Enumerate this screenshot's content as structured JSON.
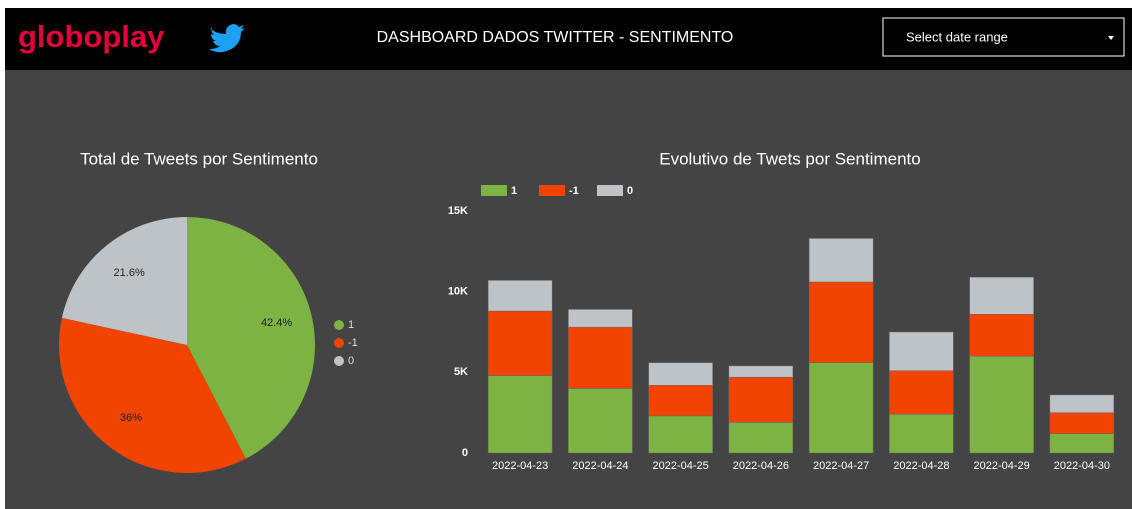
{
  "header": {
    "logo": "globoplay",
    "title": "DASHBOARD DADOS TWITTER - SENTIMENTO",
    "date_selector": "Select date range"
  },
  "chart_data": [
    {
      "type": "pie",
      "title": "Total de Tweets por Sentimento",
      "categories": [
        "1",
        "-1",
        "0"
      ],
      "values": [
        42.4,
        36,
        21.6
      ],
      "value_labels": [
        "42.4%",
        "36%",
        "21.6%"
      ],
      "colors": [
        "#7cb342",
        "#f04400",
        "#bdc3c7"
      ],
      "legend": "right"
    },
    {
      "type": "stacked_bar",
      "title": "Evolutivo de Twets por Sentimento",
      "categories": [
        "2022-04-23",
        "2022-04-24",
        "2022-04-25",
        "2022-04-26",
        "2022-04-27",
        "2022-04-28",
        "2022-04-29",
        "2022-04-30"
      ],
      "series": [
        {
          "name": "1",
          "color": "#7cb342",
          "values": [
            4800,
            4000,
            2300,
            1900,
            5600,
            2400,
            6000,
            1200
          ]
        },
        {
          "name": "-1",
          "color": "#f04400",
          "values": [
            4000,
            3800,
            1900,
            2800,
            5000,
            2700,
            2600,
            1300
          ]
        },
        {
          "name": "0",
          "color": "#bdc3c7",
          "values": [
            1900,
            1100,
            1400,
            700,
            2700,
            2400,
            2300,
            1100
          ]
        }
      ],
      "ylim": [
        0,
        15000
      ],
      "yticks": [
        0,
        {
          "value": 5000,
          "label": "5K"
        },
        {
          "value": 10000,
          "label": "10K"
        },
        {
          "value": 15000,
          "label": "15K"
        }
      ],
      "legend": "top-left"
    }
  ]
}
